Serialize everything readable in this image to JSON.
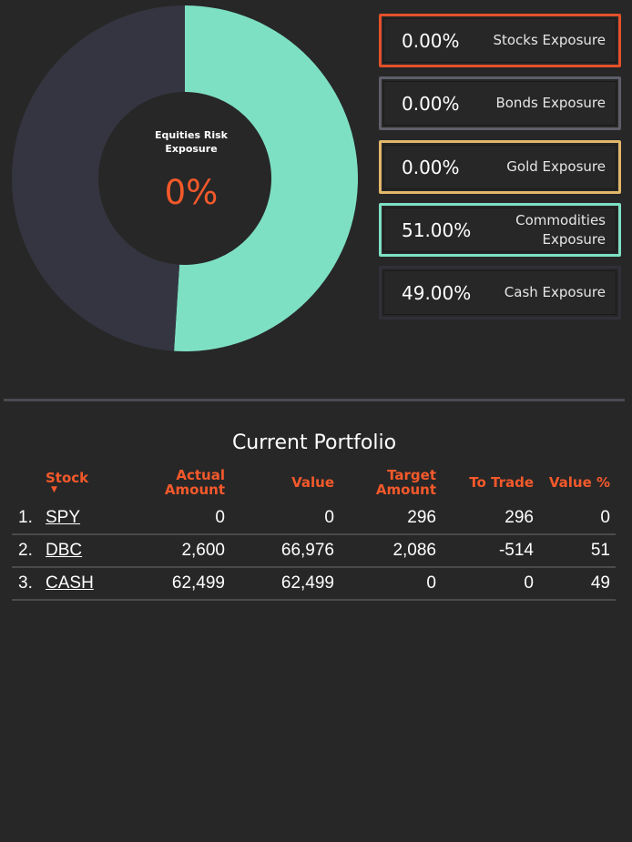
{
  "colors": {
    "background": "#272727",
    "accent": "#f4592b",
    "donut_commodities": "#7ee0c3",
    "donut_cash": "#353541",
    "donut_hole": "#272727"
  },
  "donut": {
    "label": "Equities Risk Exposure",
    "value": "0%",
    "slices": [
      {
        "name": "Commodities",
        "percent": 51,
        "color": "#7ee0c3"
      },
      {
        "name": "Cash",
        "percent": 49,
        "color": "#353541"
      }
    ]
  },
  "exposure_cards": [
    {
      "value": "0.00%",
      "label": "Stocks Exposure",
      "border": "#e4502a"
    },
    {
      "value": "0.00%",
      "label": "Bonds Exposure",
      "border": "#5e5f6a"
    },
    {
      "value": "0.00%",
      "label": "Gold Exposure",
      "border": "#e1b76a"
    },
    {
      "value": "51.00%",
      "label": "Commodities Exposure",
      "border": "#7ee0c3"
    },
    {
      "value": "49.00%",
      "label": "Cash Exposure",
      "border": "#303039"
    }
  ],
  "portfolio": {
    "title": "Current Portfolio",
    "columns": [
      "Stock",
      "Actual Amount",
      "Value",
      "Target Amount",
      "To Trade",
      "Value %"
    ],
    "rows": [
      {
        "index": "1.",
        "stock": "SPY",
        "actual": "0",
        "value": "0",
        "target": "296",
        "trade": "296",
        "value_pct": "0"
      },
      {
        "index": "2.",
        "stock": "DBC",
        "actual": "2,600",
        "value": "66,976",
        "target": "2,086",
        "trade": "-514",
        "value_pct": "51"
      },
      {
        "index": "3.",
        "stock": "CASH",
        "actual": "62,499",
        "value": "62,499",
        "target": "0",
        "trade": "0",
        "value_pct": "49"
      }
    ]
  }
}
